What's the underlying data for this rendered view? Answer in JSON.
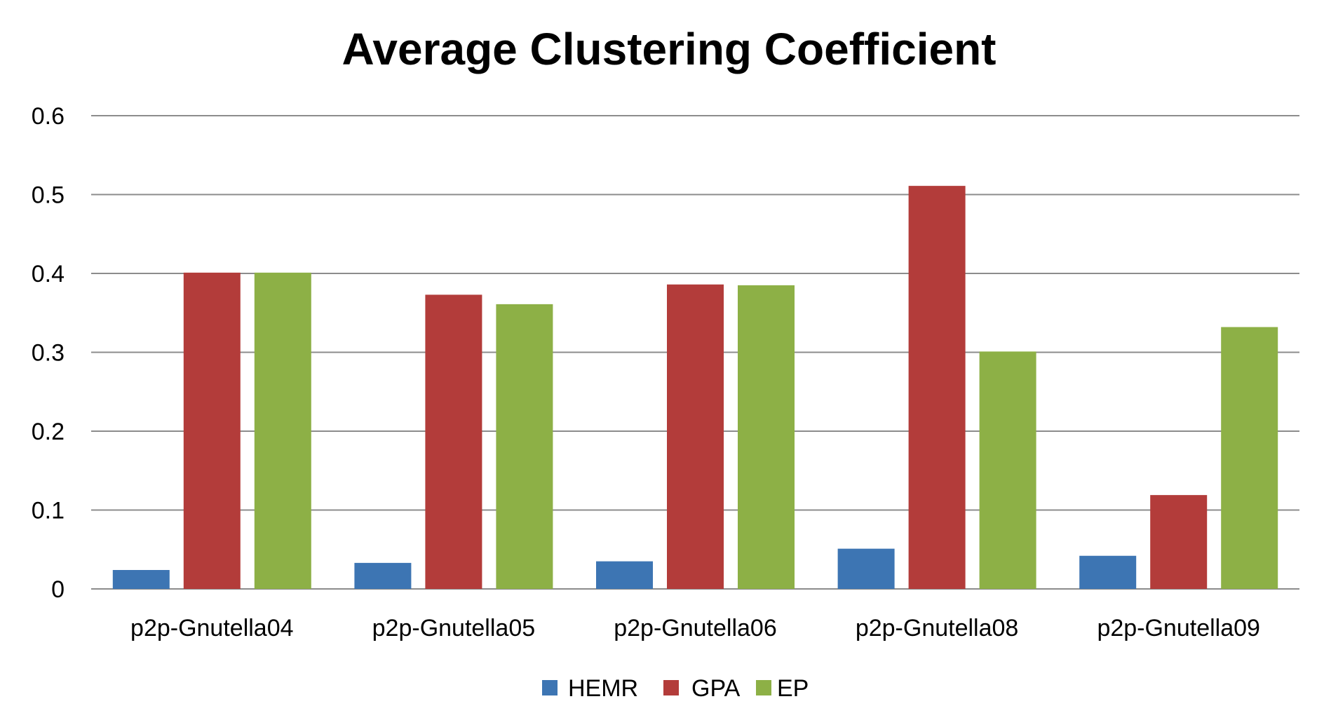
{
  "chart_data": {
    "type": "bar",
    "title": "Average Clustering Coefficient",
    "xlabel": "",
    "ylabel": "",
    "categories": [
      "p2p-Gnutella04",
      "p2p-Gnutella05",
      "p2p-Gnutella06",
      "p2p-Gnutella08",
      "p2p-Gnutella09"
    ],
    "series": [
      {
        "name": "HEMR",
        "color": "#3d75b3",
        "values": [
          0.024,
          0.033,
          0.035,
          0.051,
          0.042
        ]
      },
      {
        "name": "GPA",
        "color": "#b33c3a",
        "values": [
          0.401,
          0.373,
          0.386,
          0.511,
          0.119
        ]
      },
      {
        "name": "EP",
        "color": "#8db046",
        "values": [
          0.401,
          0.361,
          0.385,
          0.301,
          0.332
        ]
      }
    ],
    "ylim": [
      0,
      0.6
    ],
    "yticks": [
      "0",
      "0.1",
      "0.2",
      "0.3",
      "0.4",
      "0.5",
      "0.6"
    ],
    "grid": true,
    "legend_position": "bottom"
  }
}
